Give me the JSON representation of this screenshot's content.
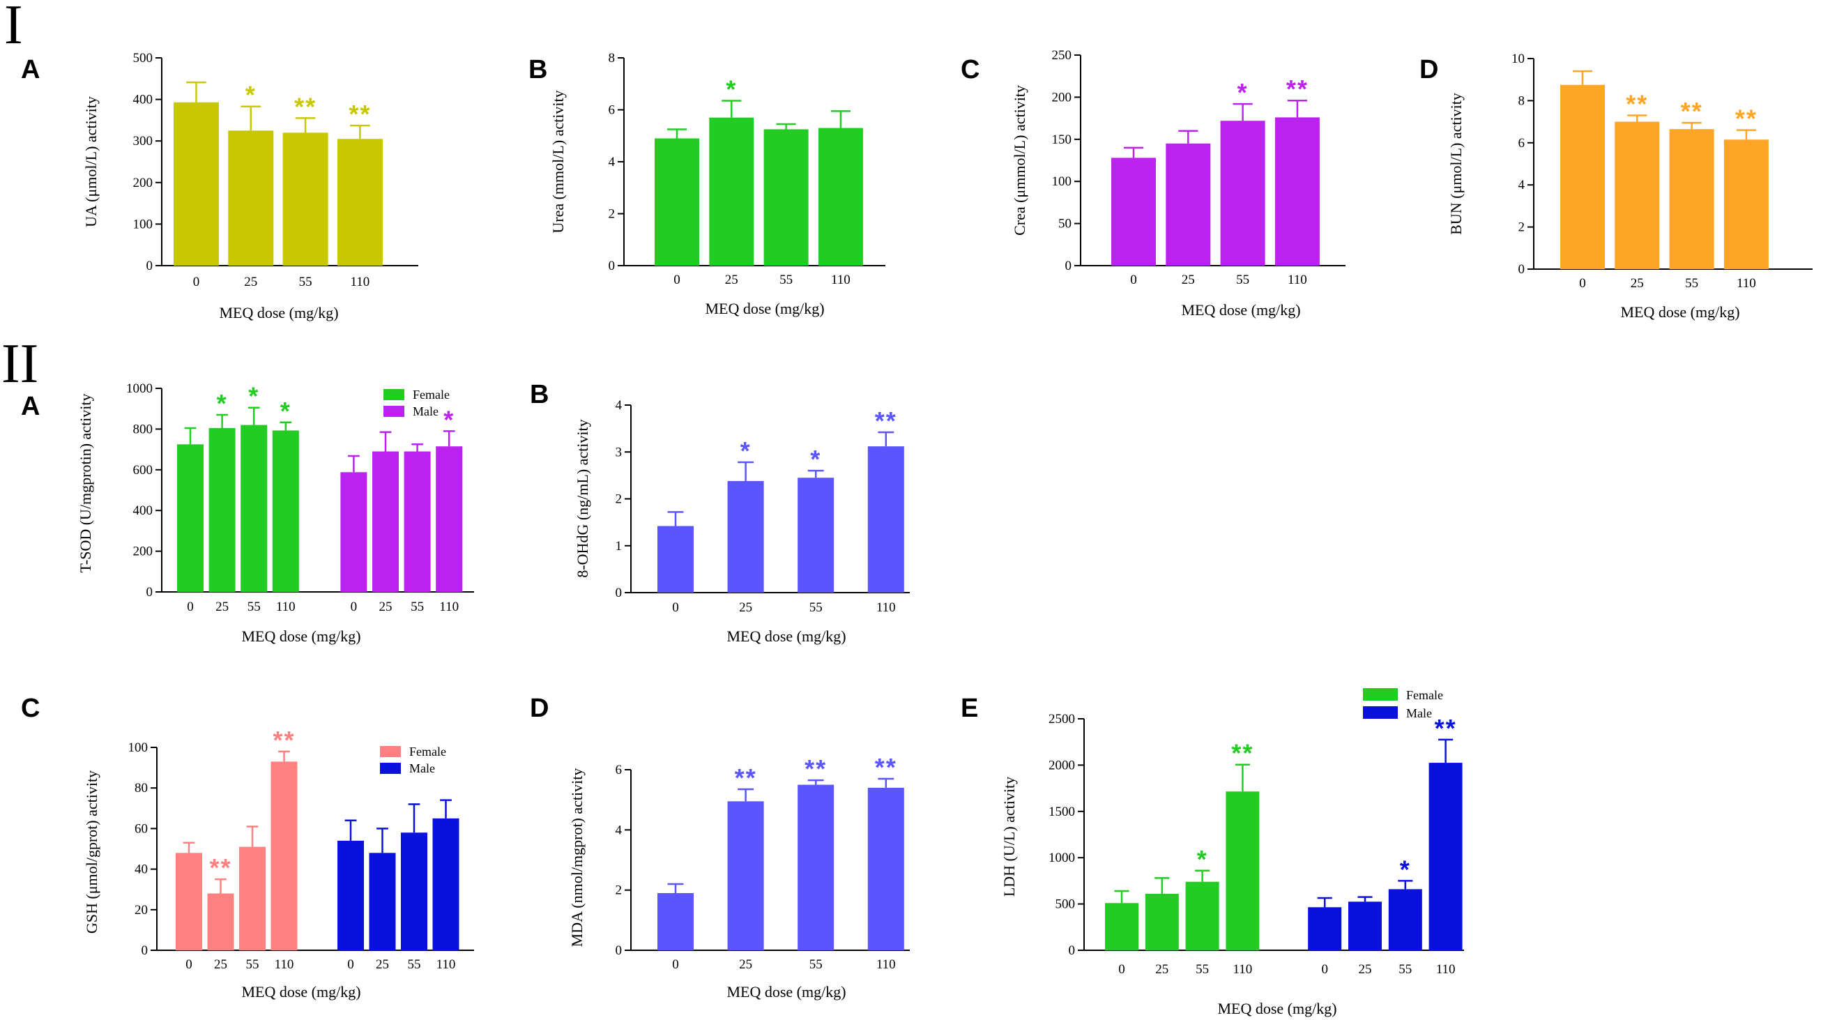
{
  "figure": {
    "section_labels": [
      "I",
      "II"
    ]
  },
  "chart_data": [
    {
      "panel": "A",
      "section": "I",
      "type": "bar",
      "ylabel": "UA (μmol/L) activity",
      "xlabel": "MEQ dose (mg/kg)",
      "categories": [
        "0",
        "25",
        "55",
        "110"
      ],
      "ylim": [
        0,
        500
      ],
      "yticks": [
        0,
        100,
        200,
        300,
        400,
        500
      ],
      "series": [
        {
          "name": "",
          "color": "#c8c800",
          "values": [
            393,
            325,
            320,
            305
          ],
          "errors": [
            48,
            58,
            35,
            32
          ],
          "sig": [
            "",
            "*",
            "**",
            "**"
          ]
        }
      ]
    },
    {
      "panel": "B",
      "section": "I",
      "type": "bar",
      "ylabel": "Urea (mmol/L) activity",
      "xlabel": "MEQ dose (mg/kg)",
      "categories": [
        "0",
        "25",
        "55",
        "110"
      ],
      "ylim": [
        0,
        8
      ],
      "yticks": [
        0,
        2,
        4,
        6,
        8
      ],
      "series": [
        {
          "name": "",
          "color": "#22cc22",
          "values": [
            4.9,
            5.7,
            5.25,
            5.3
          ],
          "errors": [
            0.35,
            0.65,
            0.2,
            0.65
          ],
          "sig": [
            "",
            "*",
            "",
            ""
          ]
        }
      ]
    },
    {
      "panel": "C",
      "section": "I",
      "type": "bar",
      "ylabel": "Crea (μmmol/L) activity",
      "xlabel": "MEQ dose (mg/kg)",
      "categories": [
        "0",
        "25",
        "55",
        "110"
      ],
      "ylim": [
        0,
        250
      ],
      "yticks": [
        0,
        50,
        100,
        150,
        200,
        250
      ],
      "series": [
        {
          "name": "",
          "color": "#bb22ee",
          "values": [
            128,
            145,
            172,
            176
          ],
          "errors": [
            12,
            15,
            20,
            20
          ],
          "sig": [
            "",
            "",
            "*",
            "**"
          ]
        }
      ]
    },
    {
      "panel": "D",
      "section": "I",
      "type": "bar",
      "ylabel": "BUN (μmol/L) activity",
      "xlabel": "MEQ dose (mg/kg)",
      "categories": [
        "0",
        "25",
        "55",
        "110"
      ],
      "ylim": [
        0,
        10
      ],
      "yticks": [
        0,
        2,
        4,
        6,
        8,
        10
      ],
      "series": [
        {
          "name": "",
          "color": "#ffa526",
          "values": [
            8.75,
            7.0,
            6.65,
            6.15
          ],
          "errors": [
            0.65,
            0.3,
            0.3,
            0.45
          ],
          "sig": [
            "",
            "**",
            "**",
            "**"
          ]
        }
      ]
    },
    {
      "panel": "A",
      "section": "II",
      "type": "bar",
      "ylabel": "T-SOD (U/mgprotin) activity",
      "xlabel": "MEQ dose (mg/kg)",
      "categories": [
        "0",
        "25",
        "55",
        "110"
      ],
      "ylim": [
        0,
        1000
      ],
      "yticks": [
        0,
        200,
        400,
        600,
        800,
        1000
      ],
      "legend": "top-right",
      "series": [
        {
          "name": "Female",
          "color": "#22cc22",
          "values": [
            725,
            805,
            820,
            793
          ],
          "errors": [
            80,
            65,
            85,
            40
          ],
          "sig": [
            "",
            "*",
            "*",
            "*"
          ]
        },
        {
          "name": "Male",
          "color": "#bb22ee",
          "values": [
            588,
            690,
            690,
            715
          ],
          "errors": [
            80,
            95,
            35,
            75
          ],
          "sig": [
            "",
            "",
            "",
            "*"
          ]
        }
      ]
    },
    {
      "panel": "B",
      "section": "II",
      "type": "bar",
      "ylabel": "8-OHdG (ng/mL) activity",
      "xlabel": "MEQ dose (mg/kg)",
      "categories": [
        "0",
        "25",
        "55",
        "110"
      ],
      "ylim": [
        0,
        4
      ],
      "yticks": [
        0,
        1,
        2,
        3,
        4
      ],
      "series": [
        {
          "name": "",
          "color": "#5a55ff",
          "values": [
            1.42,
            2.38,
            2.45,
            3.12
          ],
          "errors": [
            0.3,
            0.4,
            0.15,
            0.3
          ],
          "sig": [
            "",
            "*",
            "*",
            "**"
          ]
        }
      ]
    },
    {
      "panel": "C",
      "section": "II",
      "type": "bar",
      "ylabel": "GSH (μmol/gprot) activity",
      "xlabel": "MEQ dose (mg/kg)",
      "categories": [
        "0",
        "25",
        "55",
        "110"
      ],
      "ylim": [
        0,
        100
      ],
      "yticks": [
        0,
        20,
        40,
        60,
        80,
        100
      ],
      "legend": "top-right",
      "series": [
        {
          "name": "Female",
          "color": "#ff8080",
          "values": [
            48,
            28,
            51,
            93
          ],
          "errors": [
            5,
            7,
            10,
            5
          ],
          "sig": [
            "",
            "**",
            "",
            "**"
          ]
        },
        {
          "name": "Male",
          "color": "#0a10dd",
          "values": [
            54,
            48,
            58,
            65
          ],
          "errors": [
            10,
            12,
            14,
            9
          ],
          "sig": [
            "",
            "",
            "",
            ""
          ]
        }
      ]
    },
    {
      "panel": "D",
      "section": "II",
      "type": "bar",
      "ylabel": "MDA (nmol/mgprot) activity",
      "xlabel": "MEQ dose (mg/kg)",
      "categories": [
        "0",
        "25",
        "55",
        "110"
      ],
      "ylim": [
        0,
        6
      ],
      "yticks": [
        0,
        2,
        4,
        6
      ],
      "series": [
        {
          "name": "",
          "color": "#5a55ff",
          "values": [
            1.9,
            4.95,
            5.5,
            5.4
          ],
          "errors": [
            0.3,
            0.4,
            0.15,
            0.3
          ],
          "sig": [
            "",
            "**",
            "**",
            "**"
          ]
        }
      ]
    },
    {
      "panel": "E",
      "section": "II",
      "type": "bar",
      "ylabel": "LDH (U/L) activity",
      "xlabel": "MEQ dose (mg/kg)",
      "categories": [
        "0",
        "25",
        "55",
        "110"
      ],
      "ylim": [
        0,
        2500
      ],
      "yticks": [
        0,
        500,
        1000,
        1500,
        2000,
        2500
      ],
      "legend": "top-right",
      "series": [
        {
          "name": "Female",
          "color": "#22cc22",
          "values": [
            510,
            610,
            740,
            1715
          ],
          "errors": [
            130,
            170,
            120,
            290
          ],
          "sig": [
            "",
            "",
            "*",
            "**"
          ]
        },
        {
          "name": "Male",
          "color": "#0a10dd",
          "values": [
            465,
            525,
            660,
            2025
          ],
          "errors": [
            100,
            50,
            90,
            250
          ],
          "sig": [
            "",
            "",
            "*",
            "**"
          ]
        }
      ]
    }
  ]
}
